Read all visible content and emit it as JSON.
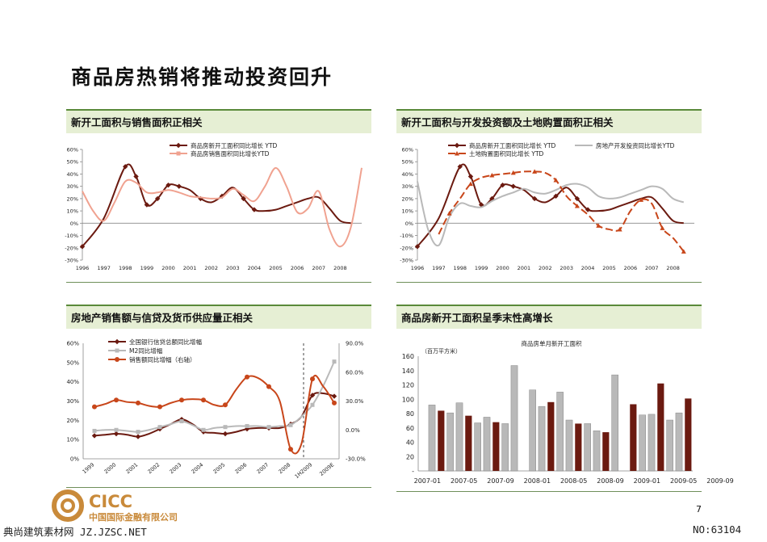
{
  "page": {
    "title": "商品房热销将推动投资回升",
    "page_number": "7",
    "company_name": "中国国际金融有限公司",
    "logo_text": "CICC",
    "footer_left": "典尚建筑素材网 JZ.JZSC.NET",
    "footer_right": "NO:63104",
    "colors": {
      "dark_red": "#6b1a10",
      "orange": "#c8461a",
      "pink": "#f0a290",
      "gray": "#b9b9b9",
      "header_bg": "#e6efd4",
      "header_rule": "#5a8a3a"
    }
  },
  "chart_data": [
    {
      "id": "c1",
      "type": "line",
      "panel_title": "新开工面积与销售面积正相关",
      "x_min": 1996,
      "x_max": 2009,
      "x_ticks": [
        1996,
        1997,
        1998,
        1999,
        2000,
        2001,
        2002,
        2003,
        2004,
        2005,
        2006,
        2007,
        2008
      ],
      "ylim": [
        -30,
        60
      ],
      "y_ticks": [
        -30,
        -20,
        -10,
        0,
        10,
        20,
        30,
        40,
        50,
        60
      ],
      "y_tick_labels": [
        "-30%",
        "-20%",
        "-10%",
        "0%",
        "10%",
        "20%",
        "30%",
        "40%",
        "50%",
        "60%"
      ],
      "series": [
        {
          "name": "商品房新开工面积同比增长 YTD",
          "color": "#6b1a10",
          "marker": "diamond",
          "markers_at": [
            0,
            2,
            3,
            4,
            5,
            6,
            7,
            9,
            11,
            13,
            14
          ],
          "x": [
            1996,
            1997,
            1998,
            1998.5,
            1999,
            1999.5,
            2000,
            2000.5,
            2001,
            2001.5,
            2002,
            2002.5,
            2003,
            2003.5,
            2004,
            2004.5,
            2005,
            2005.5,
            2006,
            2006.5,
            2007,
            2007.5,
            2008,
            2008.5
          ],
          "y": [
            -19,
            4,
            46,
            38,
            15,
            20,
            31,
            30,
            27,
            20,
            17,
            22,
            29,
            20,
            11,
            10,
            11,
            14,
            17,
            20,
            21,
            12,
            2,
            0
          ]
        },
        {
          "name": "商品房销售面积同比增长YTD",
          "color": "#f0a290",
          "marker": "square",
          "markers_at": [],
          "x": [
            1996,
            1996.5,
            1997,
            1997.5,
            1998,
            1998.5,
            1999,
            1999.5,
            2000,
            2000.5,
            2001,
            2001.5,
            2002,
            2002.5,
            2003,
            2003.5,
            2004,
            2004.5,
            2005,
            2005.5,
            2006,
            2006.5,
            2007,
            2007.5,
            2008,
            2008.5,
            2009
          ],
          "y": [
            26,
            10,
            2,
            17,
            34,
            33,
            25,
            25,
            27,
            25,
            22,
            21,
            20,
            21,
            28,
            23,
            18,
            30,
            45,
            30,
            9,
            12,
            26,
            -5,
            -19,
            -3,
            45
          ]
        }
      ]
    },
    {
      "id": "c2",
      "type": "line",
      "panel_title": "新开工面积与开发投资额及土地购置面积正相关",
      "x_min": 1996,
      "x_max": 2009,
      "x_ticks": [
        1996,
        1997,
        1998,
        1999,
        2000,
        2001,
        2002,
        2003,
        2004,
        2005,
        2006,
        2007,
        2008
      ],
      "ylim": [
        -30,
        60
      ],
      "y_ticks": [
        -30,
        -20,
        -10,
        0,
        10,
        20,
        30,
        40,
        50,
        60
      ],
      "y_tick_labels": [
        "-30%",
        "-20%",
        "-10%",
        "0%",
        "10%",
        "20%",
        "30%",
        "40%",
        "50%",
        "60%"
      ],
      "series": [
        {
          "name": "商品房新开工面积同比增长 YTD",
          "color": "#6b1a10",
          "marker": "diamond",
          "markers_at": [
            0,
            2,
            3,
            4,
            5,
            6,
            7,
            9,
            11,
            13,
            14
          ],
          "x": [
            1996,
            1997,
            1998,
            1998.5,
            1999,
            1999.5,
            2000,
            2000.5,
            2001,
            2001.5,
            2002,
            2002.5,
            2003,
            2003.5,
            2004,
            2004.5,
            2005,
            2005.5,
            2006,
            2006.5,
            2007,
            2007.5,
            2008,
            2008.5
          ],
          "y": [
            -19,
            4,
            46,
            38,
            15,
            20,
            31,
            30,
            27,
            20,
            17,
            22,
            29,
            20,
            11,
            10,
            11,
            14,
            17,
            20,
            21,
            12,
            2,
            0
          ]
        },
        {
          "name": "房地产开发投资同比增长YTD",
          "color": "#b9b9b9",
          "marker": "none",
          "markers_at": [],
          "x": [
            1996,
            1996.5,
            1997,
            1997.5,
            1998,
            1998.5,
            1999,
            1999.5,
            2000,
            2000.5,
            2001,
            2001.5,
            2002,
            2002.5,
            2003,
            2003.5,
            2004,
            2004.5,
            2005,
            2005.5,
            2006,
            2006.5,
            2007,
            2007.5,
            2008,
            2008.5
          ],
          "y": [
            34,
            -5,
            -18,
            5,
            16,
            14,
            13,
            18,
            22,
            25,
            28,
            25,
            24,
            27,
            31,
            32,
            29,
            22,
            20,
            21,
            24,
            27,
            30,
            28,
            20,
            17
          ]
        },
        {
          "name": "土地购置面积同比增长 YTD",
          "color": "#c8461a",
          "marker": "triangle",
          "markers_at": [
            1,
            3,
            5,
            7,
            9,
            11,
            13,
            15,
            17,
            19,
            21,
            23
          ],
          "dash": "9 4",
          "x": [
            1997,
            1997.5,
            1998,
            1998.5,
            1999,
            1999.5,
            2000,
            2000.5,
            2001,
            2001.5,
            2002,
            2002.5,
            2003,
            2003.5,
            2004,
            2004.5,
            2005,
            2005.5,
            2006,
            2006.5,
            2007,
            2007.5,
            2008,
            2008.5
          ],
          "y": [
            -9,
            8,
            20,
            32,
            37,
            39,
            40,
            41,
            42,
            42,
            41,
            35,
            22,
            14,
            7,
            -2,
            -5,
            -5,
            10,
            19,
            16,
            -4,
            -12,
            -23
          ]
        }
      ]
    },
    {
      "id": "c3",
      "type": "line",
      "panel_title": "房地产销售额与信贷及货币供应量正相关",
      "x_labels": [
        "1999",
        "2000",
        "2001",
        "2002",
        "2003",
        "2004",
        "2005",
        "2006",
        "2007",
        "2008",
        "1H2009",
        "2009E"
      ],
      "ylim": [
        0,
        60
      ],
      "y_ticks": [
        0,
        10,
        20,
        30,
        40,
        50,
        60
      ],
      "y_tick_labels": [
        "0%",
        "10%",
        "20%",
        "30%",
        "40%",
        "50%",
        "60%"
      ],
      "y2lim": [
        -30,
        90
      ],
      "y2_ticks": [
        -30,
        0,
        30,
        60,
        90
      ],
      "y2_tick_labels": [
        "-30.0%",
        "0.0%",
        "30.0%",
        "60.0%",
        "90.0%"
      ],
      "divider_after_index": 10,
      "series": [
        {
          "name": "全国银行信贷总额同比增幅",
          "color": "#6b1a10",
          "marker": "diamond",
          "axis": "left",
          "x": [
            0,
            0.5,
            1,
            1.5,
            2,
            2.5,
            3,
            3.5,
            4,
            4.5,
            5,
            5.5,
            6,
            6.5,
            7,
            7.5,
            8,
            8.5,
            9,
            9.5,
            10,
            10.5,
            11
          ],
          "y": [
            12,
            12.5,
            13,
            12.5,
            11.5,
            13,
            15.5,
            18,
            20.5,
            18,
            14,
            13.5,
            13,
            14,
            15.5,
            16,
            16,
            16,
            18,
            22,
            33,
            34,
            32.5
          ]
        },
        {
          "name": "M2同比增幅",
          "color": "#b9b9b9",
          "marker": "square",
          "axis": "left",
          "x": [
            0,
            0.5,
            1,
            1.5,
            2,
            2.5,
            3,
            3.5,
            4,
            4.5,
            5,
            5.5,
            6,
            6.5,
            7,
            7.5,
            8,
            8.5,
            9,
            9.5,
            10,
            10.5,
            11
          ],
          "y": [
            14.5,
            15,
            15,
            14.5,
            14,
            15,
            16.5,
            18,
            19.5,
            17.5,
            15,
            16,
            16.5,
            17,
            17,
            17,
            16.5,
            17,
            17.5,
            22,
            28,
            38,
            50.5
          ]
        },
        {
          "name": "销售额同比增幅（右轴）",
          "color": "#c8461a",
          "marker": "circle",
          "axis": "right",
          "x": [
            0,
            0.5,
            1,
            1.5,
            2,
            2.5,
            3,
            3.5,
            4,
            4.5,
            5,
            5.5,
            6,
            6.5,
            7,
            7.5,
            8,
            8.5,
            9,
            9.5,
            10,
            10.5,
            11
          ],
          "y": [
            24,
            27,
            31,
            29,
            28,
            25,
            24,
            28,
            31,
            32,
            31,
            26,
            26,
            42,
            55,
            54,
            45,
            30,
            -20,
            -14,
            53,
            45,
            28
          ]
        }
      ]
    },
    {
      "id": "c4",
      "type": "bar",
      "panel_title": "商品房新开工面积呈季末性高增长",
      "inner_title": "商品房单月新开工面积",
      "unit_label": "（百万平方米）",
      "ylim": [
        0,
        160
      ],
      "y_ticks": [
        0,
        20,
        40,
        60,
        80,
        100,
        120,
        140,
        160
      ],
      "y_tick_labels": [
        "-",
        "20",
        "40",
        "60",
        "80",
        "100",
        "120",
        "140",
        "160"
      ],
      "x_labels": [
        "2007-01",
        "2007-05",
        "2007-09",
        "2008-01",
        "2008-05",
        "2008-09",
        "2009-01",
        "2009-05",
        "2009-09"
      ],
      "values": [
        0,
        92,
        84,
        81,
        95,
        77,
        67,
        75,
        68,
        66,
        147,
        0,
        113,
        90,
        96,
        110,
        71,
        66,
        66,
        56,
        54,
        134,
        0,
        93,
        78,
        79,
        122,
        71,
        81,
        101
      ],
      "quarter_end_months": [
        2,
        5,
        8,
        11
      ],
      "colors": {
        "quarter_end": "#6b1a10",
        "other": "#b9b9b9"
      }
    }
  ]
}
